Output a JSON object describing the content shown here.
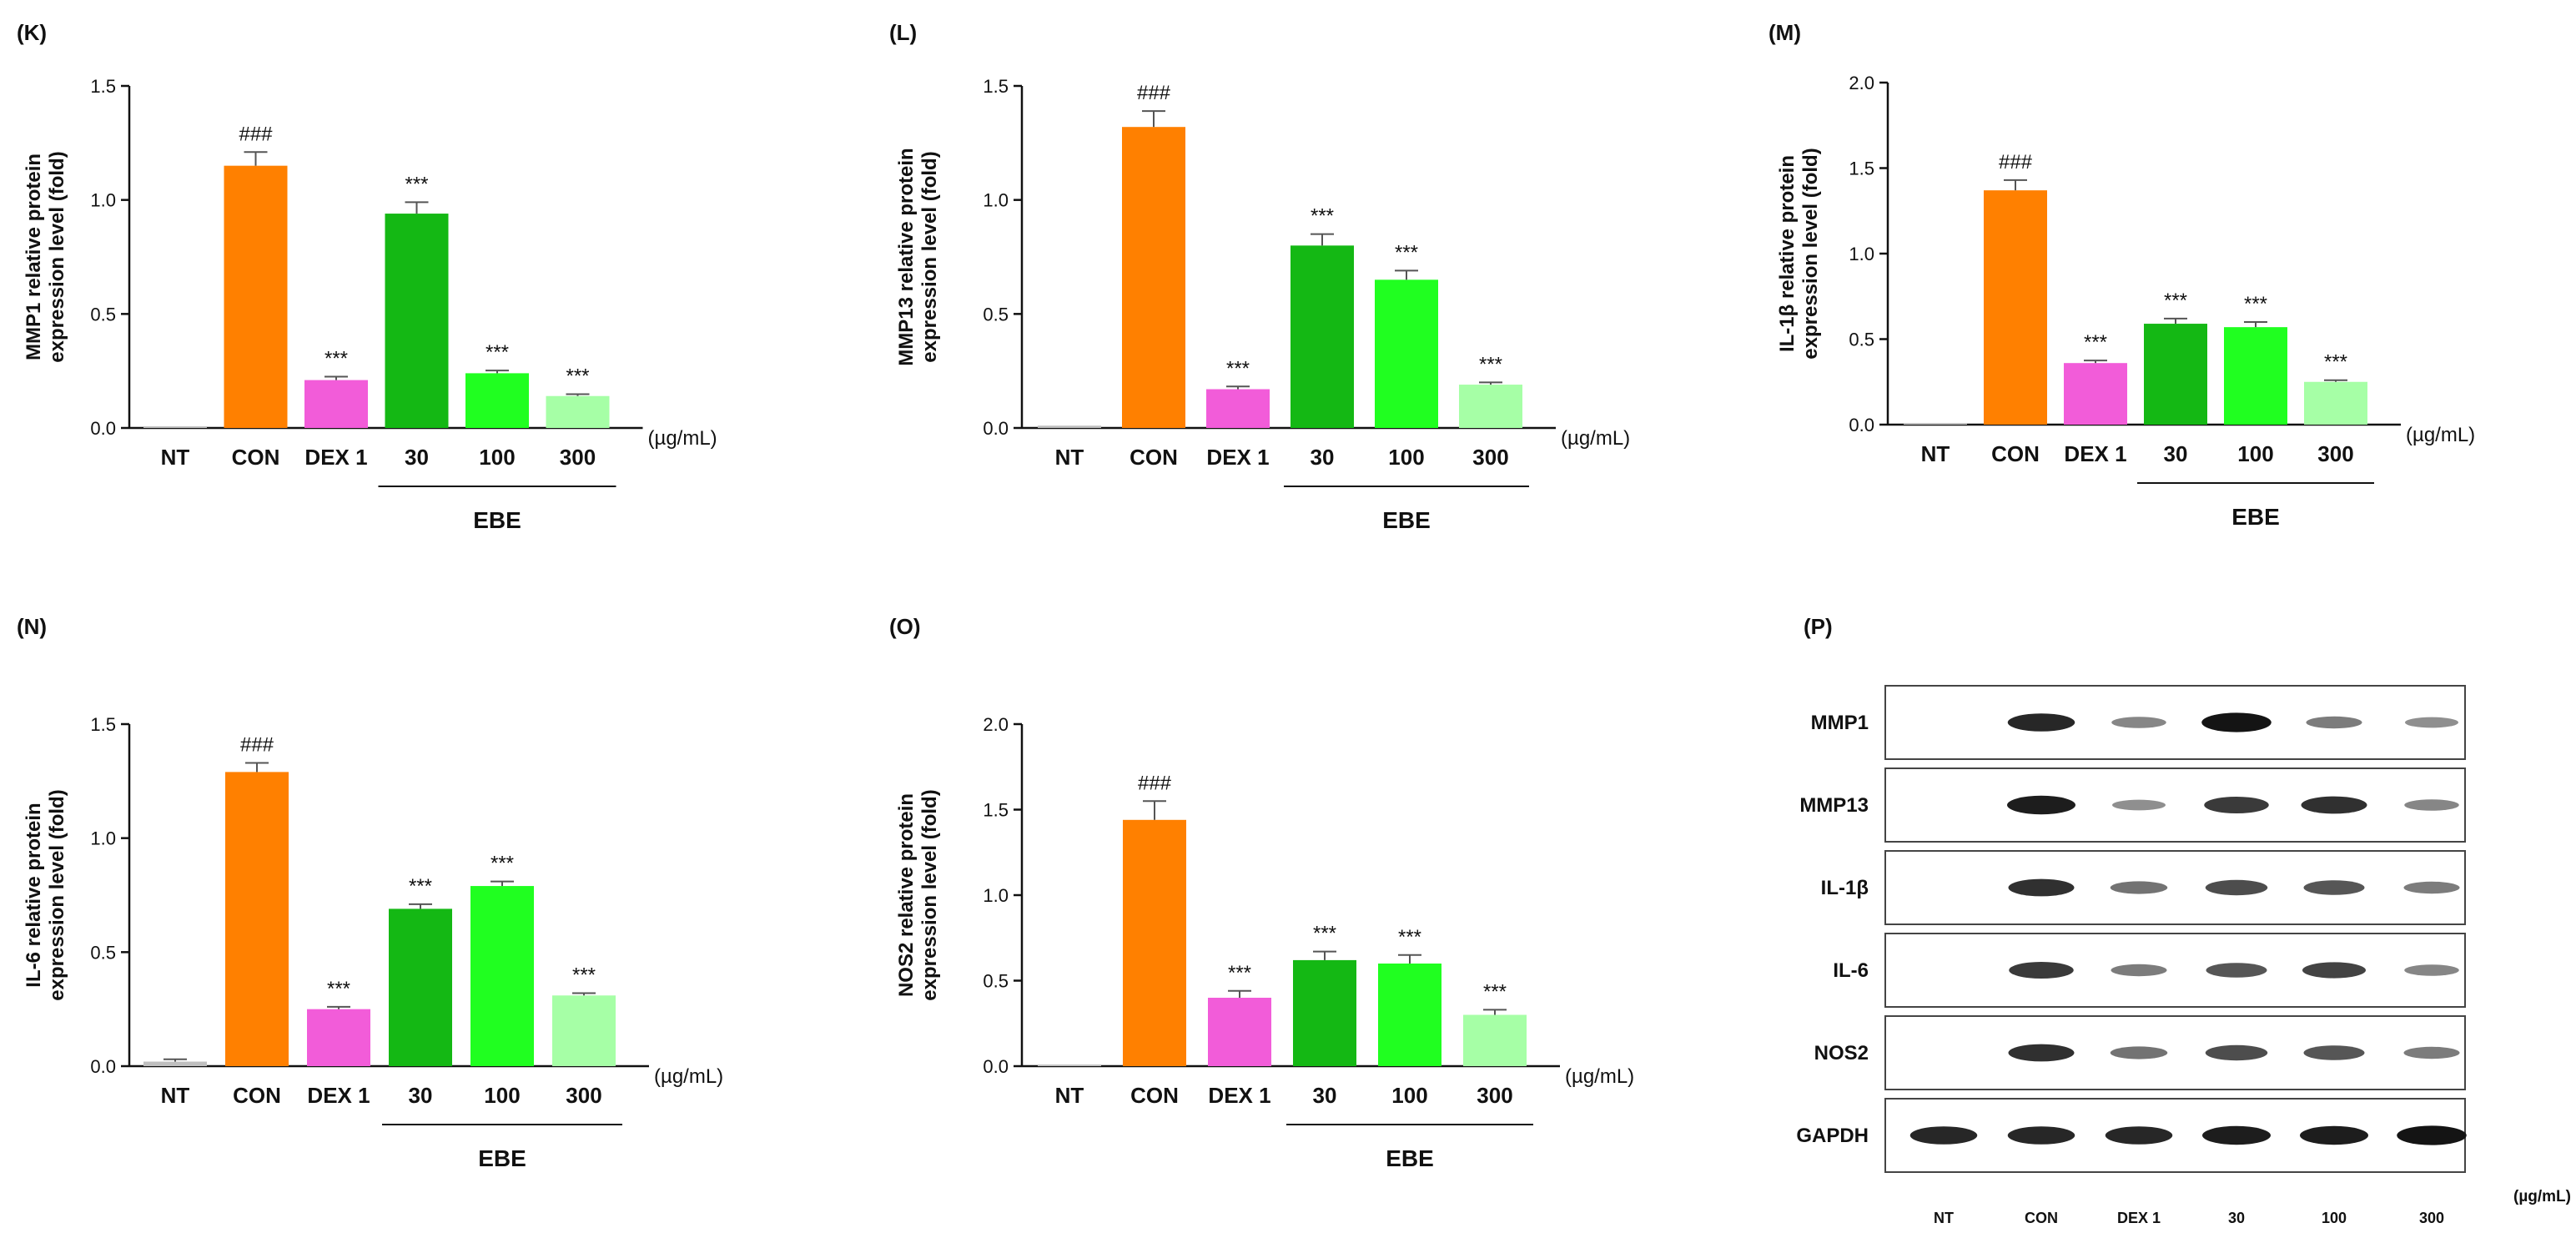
{
  "chart_data": [
    {
      "type": "bar",
      "panel": "(K)",
      "ylabel_lines": [
        "MMP1 relative protein",
        "expression level (fold)"
      ],
      "categories": [
        "NT",
        "CON",
        "DEX 1",
        "30",
        "100",
        "300"
      ],
      "values": [
        0.0,
        1.15,
        0.21,
        0.94,
        0.24,
        0.14
      ],
      "errors": [
        0.0,
        0.06,
        0.015,
        0.05,
        0.012,
        0.008
      ],
      "significance": [
        "",
        "###",
        "***",
        "***",
        "***",
        "***"
      ],
      "colors": [
        "#bfbfbf",
        "#ff8000",
        "#f25cd9",
        "#14b814",
        "#20ff20",
        "#a6ffa6"
      ],
      "ylim": [
        0,
        1.5
      ],
      "yticks": [
        "0.0",
        "0.5",
        "1.0",
        "1.5"
      ],
      "unit": "(µg/mL)",
      "group_label": "EBE"
    },
    {
      "type": "bar",
      "panel": "(L)",
      "ylabel_lines": [
        "MMP13 relative protein",
        "expression level (fold)"
      ],
      "categories": [
        "NT",
        "CON",
        "DEX 1",
        "30",
        "100",
        "300"
      ],
      "values": [
        0.01,
        1.32,
        0.17,
        0.8,
        0.65,
        0.19
      ],
      "errors": [
        0.0,
        0.07,
        0.012,
        0.05,
        0.04,
        0.01
      ],
      "significance": [
        "",
        "###",
        "***",
        "***",
        "***",
        "***"
      ],
      "colors": [
        "#bfbfbf",
        "#ff8000",
        "#f25cd9",
        "#14b814",
        "#20ff20",
        "#a6ffa6"
      ],
      "ylim": [
        0,
        1.5
      ],
      "yticks": [
        "0.0",
        "0.5",
        "1.0",
        "1.5"
      ],
      "unit": "(µg/mL)",
      "group_label": "EBE"
    },
    {
      "type": "bar",
      "panel": "(M)",
      "ylabel_lines": [
        "IL-1β relative protein",
        "expression level (fold)"
      ],
      "categories": [
        "NT",
        "CON",
        "DEX 1",
        "30",
        "100",
        "300"
      ],
      "values": [
        0.0,
        1.37,
        0.36,
        0.59,
        0.57,
        0.25
      ],
      "errors": [
        0.0,
        0.06,
        0.015,
        0.03,
        0.03,
        0.01
      ],
      "significance": [
        "",
        "###",
        "***",
        "***",
        "***",
        "***"
      ],
      "colors": [
        "#bfbfbf",
        "#ff8000",
        "#f25cd9",
        "#14b814",
        "#20ff20",
        "#a6ffa6"
      ],
      "ylim": [
        0,
        2.0
      ],
      "yticks": [
        "0.0",
        "0.5",
        "1.0",
        "1.5",
        "2.0"
      ],
      "unit": "(µg/mL)",
      "group_label": "EBE"
    },
    {
      "type": "bar",
      "panel": "(N)",
      "ylabel_lines": [
        "IL-6 relative protein",
        "expression level (fold)"
      ],
      "categories": [
        "NT",
        "CON",
        "DEX 1",
        "30",
        "100",
        "300"
      ],
      "values": [
        0.02,
        1.29,
        0.25,
        0.69,
        0.79,
        0.31
      ],
      "errors": [
        0.01,
        0.04,
        0.01,
        0.02,
        0.02,
        0.01
      ],
      "significance": [
        "",
        "###",
        "***",
        "***",
        "***",
        "***"
      ],
      "colors": [
        "#bfbfbf",
        "#ff8000",
        "#f25cd9",
        "#14b814",
        "#20ff20",
        "#a6ffa6"
      ],
      "ylim": [
        0,
        1.5
      ],
      "yticks": [
        "0.0",
        "0.5",
        "1.0",
        "1.5"
      ],
      "unit": "(µg/mL)",
      "group_label": "EBE"
    },
    {
      "type": "bar",
      "panel": "(O)",
      "ylabel_lines": [
        "NOS2 relative protein",
        "expression level (fold)"
      ],
      "categories": [
        "NT",
        "CON",
        "DEX 1",
        "30",
        "100",
        "300"
      ],
      "values": [
        0.0,
        1.44,
        0.4,
        0.62,
        0.6,
        0.3
      ],
      "errors": [
        0.0,
        0.11,
        0.04,
        0.05,
        0.05,
        0.03
      ],
      "significance": [
        "",
        "###",
        "***",
        "***",
        "***",
        "***"
      ],
      "colors": [
        "#bfbfbf",
        "#ff8000",
        "#f25cd9",
        "#14b814",
        "#20ff20",
        "#a6ffa6"
      ],
      "ylim": [
        0,
        2.0
      ],
      "yticks": [
        "0.0",
        "0.5",
        "1.0",
        "1.5",
        "2.0"
      ],
      "unit": "(µg/mL)",
      "group_label": "EBE"
    }
  ],
  "western_blot": {
    "panel": "(P)",
    "rows": [
      "MMP1",
      "MMP13",
      "IL-1β",
      "IL-6",
      "NOS2",
      "GAPDH"
    ],
    "columns": [
      "NT",
      "CON",
      "DEX 1",
      "30",
      "100",
      "300"
    ],
    "unit": "(µg/mL)",
    "band_intensity": [
      [
        0.0,
        0.85,
        0.35,
        0.95,
        0.4,
        0.3
      ],
      [
        0.0,
        0.9,
        0.3,
        0.75,
        0.8,
        0.35
      ],
      [
        0.0,
        0.8,
        0.45,
        0.65,
        0.6,
        0.4
      ],
      [
        0.0,
        0.75,
        0.4,
        0.6,
        0.7,
        0.35
      ],
      [
        0.0,
        0.8,
        0.45,
        0.65,
        0.6,
        0.4
      ],
      [
        0.85,
        0.85,
        0.85,
        0.9,
        0.9,
        0.95
      ]
    ]
  }
}
